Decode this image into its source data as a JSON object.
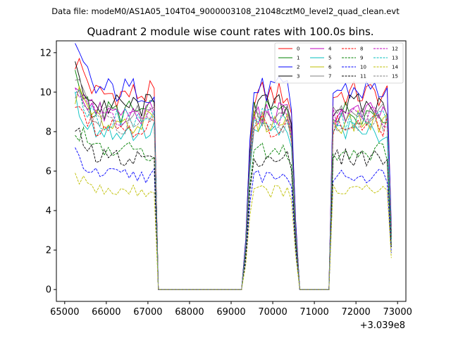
{
  "suptitle": "Data file: modeM0/AS1A05_104T04_9000003108_21048cztM0_level2_quad_clean.evt",
  "chart_data": {
    "type": "line",
    "title": "Quadrant 2 module wise count rates with 100.0s bins.",
    "xlabel": "",
    "ylabel": "",
    "x_offset_label": "+3.039e8",
    "xlim": [
      64800,
      73200
    ],
    "ylim": [
      -0.6,
      12.6
    ],
    "x_ticks": [
      65000,
      66000,
      67000,
      68000,
      69000,
      70000,
      71000,
      72000,
      73000
    ],
    "x_tick_labels": [
      "65000",
      "66000",
      "67000",
      "68000",
      "69000",
      "70000",
      "71000",
      "72000",
      "73000"
    ],
    "y_ticks": [
      0,
      2,
      4,
      6,
      8,
      10,
      12
    ],
    "y_tick_labels": [
      "0",
      "2",
      "4",
      "6",
      "8",
      "10",
      "12"
    ],
    "legend_position": "top-right",
    "series": [
      {
        "name": "0",
        "color": "#ff0000",
        "dash": "solid",
        "level": 9.9
      },
      {
        "name": "1",
        "color": "#008000",
        "dash": "solid",
        "level": 9.0
      },
      {
        "name": "2",
        "color": "#0000ff",
        "dash": "solid",
        "level": 10.1
      },
      {
        "name": "3",
        "color": "#000000",
        "dash": "solid",
        "level": 9.3
      },
      {
        "name": "4",
        "color": "#bf00bf",
        "dash": "solid",
        "level": 8.9
      },
      {
        "name": "5",
        "color": "#00bfbf",
        "dash": "solid",
        "level": 8.0
      },
      {
        "name": "6",
        "color": "#bfbf00",
        "dash": "solid",
        "level": 8.5
      },
      {
        "name": "7",
        "color": "#808080",
        "dash": "solid",
        "level": 8.8
      },
      {
        "name": "8",
        "color": "#ff0000",
        "dash": "dashed",
        "level": 8.3
      },
      {
        "name": "9",
        "color": "#008000",
        "dash": "dashed",
        "level": 7.0
      },
      {
        "name": "10",
        "color": "#0000ff",
        "dash": "dashed",
        "level": 5.8
      },
      {
        "name": "11",
        "color": "#000000",
        "dash": "dashed",
        "level": 6.7
      },
      {
        "name": "12",
        "color": "#bf00bf",
        "dash": "dashed",
        "level": 8.8
      },
      {
        "name": "13",
        "color": "#00bfbf",
        "dash": "dashed",
        "level": 8.6
      },
      {
        "name": "14",
        "color": "#bfbf00",
        "dash": "dashed",
        "level": 5.0
      },
      {
        "name": "15",
        "color": "#808080",
        "dash": "dashed",
        "level": 8.4
      }
    ],
    "time_bins": {
      "segments": [
        {
          "start": 65250,
          "end": 67150,
          "step": 100
        },
        {
          "start": 69350,
          "end": 70450,
          "step": 100
        },
        {
          "start": 71450,
          "end": 72850,
          "step": 100
        }
      ],
      "zero_ranges": [
        [
          67250,
          69250
        ],
        [
          70550,
          71350
        ]
      ]
    }
  }
}
